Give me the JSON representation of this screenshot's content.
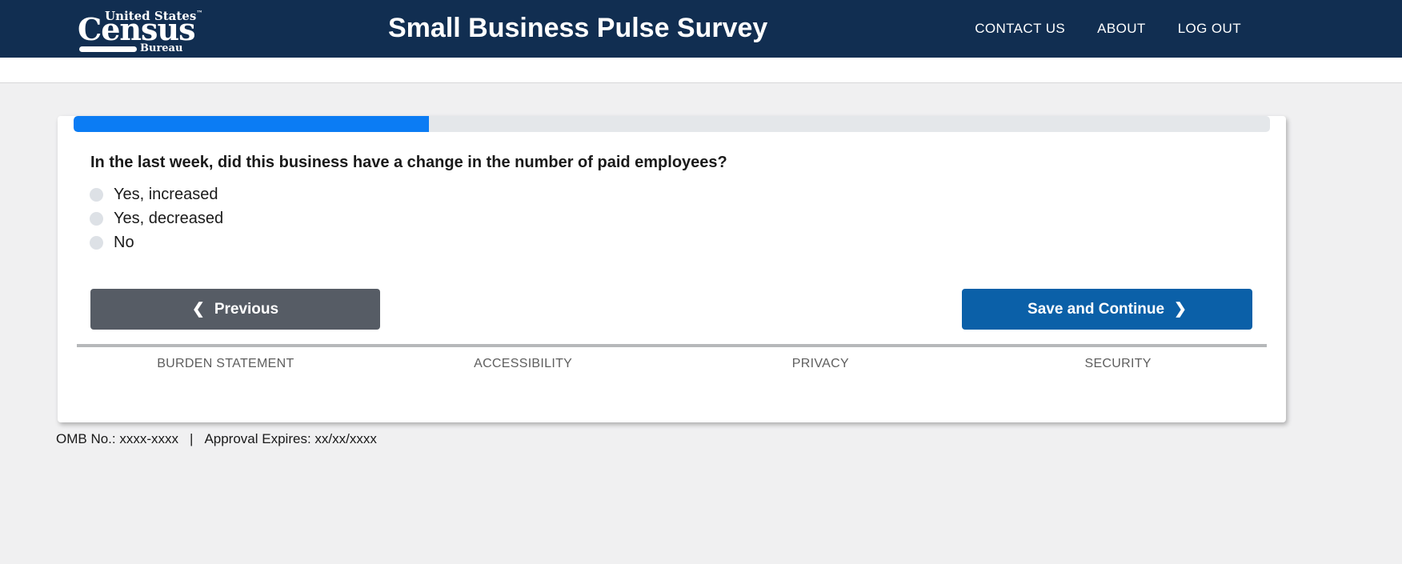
{
  "colors": {
    "header_bg": "#112e51",
    "page_bg": "#f0f0f1",
    "progress_fill": "#0b7cf4",
    "progress_track": "#e4e7ea",
    "previous_button": "#565c65",
    "save_button": "#0b60a8",
    "divider": "#b6b8ba",
    "footer_link_text": "#5e5e5e"
  },
  "header": {
    "logo": {
      "top_line": "United States",
      "trademark": "™",
      "name": "Census",
      "bottom_label": "Bureau"
    },
    "title": "Small Business Pulse Survey",
    "nav": {
      "contact": "CONTACT US",
      "about": "ABOUT",
      "logout": "LOG OUT"
    }
  },
  "survey": {
    "progress_percent": "30",
    "progress_style": "width:29.7%",
    "question": "In the last week, did this business have a change in the number of paid employees?",
    "options": [
      {
        "label": "Yes, increased",
        "selected": false
      },
      {
        "label": "Yes, decreased",
        "selected": false
      },
      {
        "label": "No",
        "selected": false
      }
    ],
    "previous_label": "Previous",
    "save_label": "Save and Continue",
    "chevron_left": "❮",
    "chevron_right": "❯"
  },
  "footer": {
    "links": [
      {
        "label": "BURDEN STATEMENT"
      },
      {
        "label": "ACCESSIBILITY"
      },
      {
        "label": "PRIVACY"
      },
      {
        "label": "SECURITY"
      }
    ],
    "omb_no": "OMB No.: xxxx-xxxx",
    "separator": "|",
    "approval": "Approval Expires: xx/xx/xxxx"
  }
}
